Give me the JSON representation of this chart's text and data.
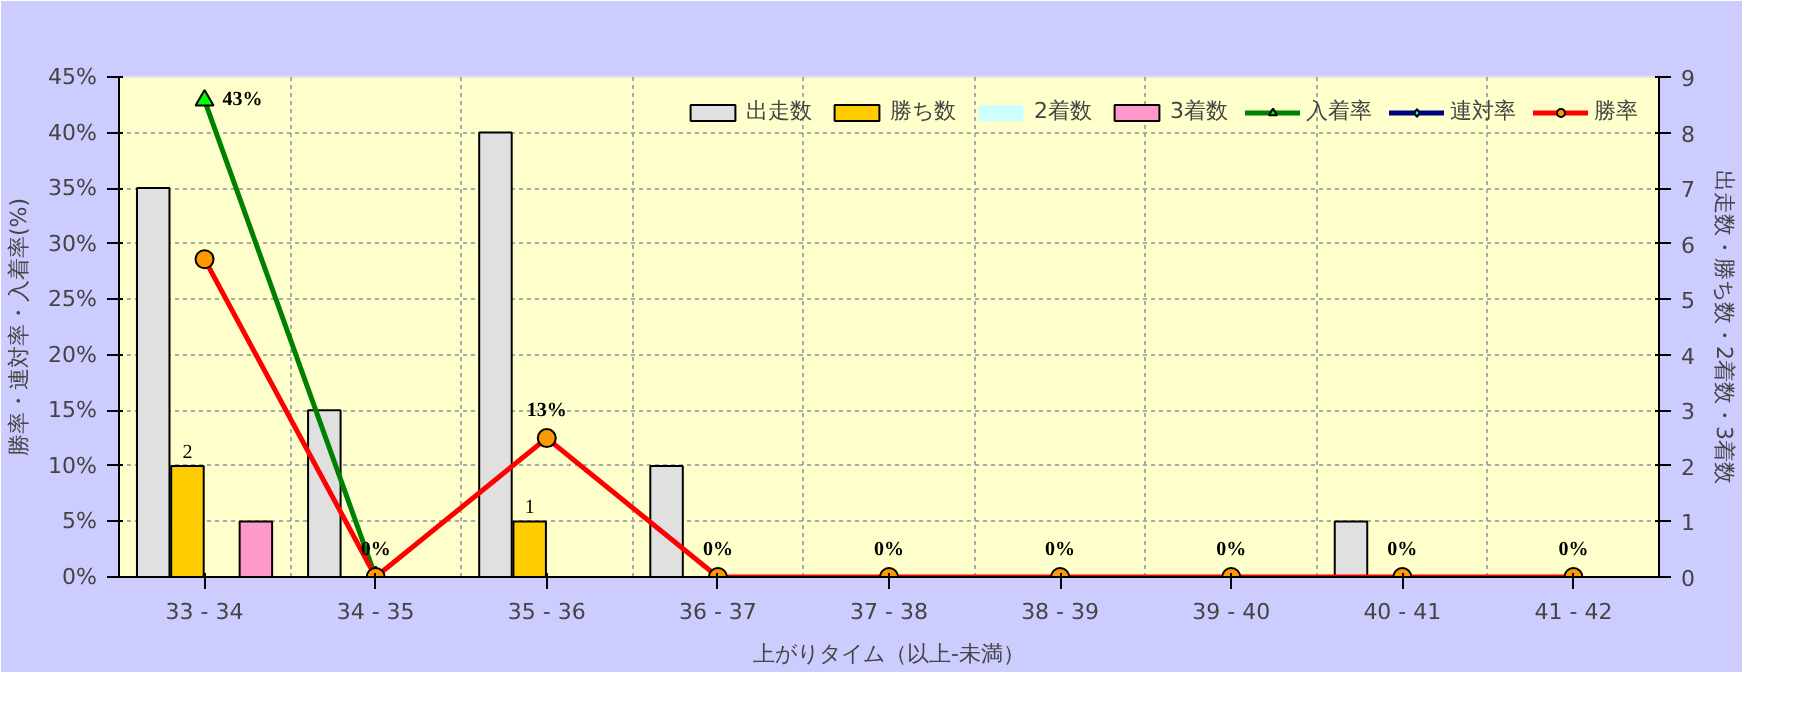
{
  "chart_data": {
    "type": "bar",
    "xlabel": "上がりタイム（以上-未満）",
    "ylabel": "勝率・連対率・入着率(%)",
    "y2label": "出走数・勝ち数・2着数・3着数",
    "categories": [
      "33 - 34",
      "34 - 35",
      "35 - 36",
      "36 - 37",
      "37 - 38",
      "38 - 39",
      "39 - 40",
      "40 - 41",
      "41 - 42"
    ],
    "series": [
      {
        "name": "出走数",
        "color": "#e0e0e0",
        "axis": "y2",
        "values": [
          7,
          3,
          8,
          2,
          0,
          0,
          0,
          1,
          0
        ]
      },
      {
        "name": "勝ち数",
        "color": "#ffcc00",
        "axis": "y2",
        "values": [
          2,
          0,
          1,
          0,
          0,
          0,
          0,
          0,
          0
        ],
        "value_labels": [
          "2",
          null,
          "1",
          null,
          null,
          null,
          null,
          null,
          null
        ]
      },
      {
        "name": "2着数",
        "color": "#ccffff",
        "axis": "y2",
        "values": [
          0,
          0,
          0,
          0,
          0,
          0,
          0,
          0,
          0
        ]
      },
      {
        "name": "3着数",
        "color": "#ff99cc",
        "axis": "y2",
        "values": [
          1,
          0,
          0,
          0,
          0,
          0,
          0,
          0,
          0
        ]
      },
      {
        "name": "入着率",
        "type": "line",
        "color": "#008000",
        "marker": "triangle",
        "values": [
          42.9,
          0,
          null,
          null,
          null,
          null,
          null,
          null,
          null
        ],
        "value_labels": [
          "43%",
          null,
          null,
          null,
          null,
          null,
          null,
          null,
          null
        ]
      },
      {
        "name": "連対率",
        "type": "line",
        "color": "#000080",
        "marker": "diamond",
        "values": [
          null,
          null,
          null,
          null,
          null,
          null,
          null,
          null,
          null
        ]
      },
      {
        "name": "勝率",
        "type": "line",
        "color": "#ff0000",
        "marker": "circle",
        "values": [
          28.6,
          0,
          12.5,
          0,
          0,
          0,
          0,
          0,
          0
        ],
        "value_labels": [
          null,
          "0%",
          "13%",
          "0%",
          "0%",
          "0%",
          "0%",
          "0%",
          "0%"
        ]
      }
    ],
    "ylim": [
      0,
      45
    ],
    "yticks": [
      {
        "value": 0,
        "label": "0%"
      },
      {
        "value": 5,
        "label": "5%"
      },
      {
        "value": 10,
        "label": "10%"
      },
      {
        "value": 15,
        "label": "15%"
      },
      {
        "value": 20,
        "label": "20%"
      },
      {
        "value": 25,
        "label": "25%"
      },
      {
        "value": 30,
        "label": "30%"
      },
      {
        "value": 35,
        "label": "35%"
      },
      {
        "value": 40,
        "label": "40%"
      },
      {
        "value": 45,
        "label": "45%"
      }
    ],
    "y2lim": [
      0,
      9
    ],
    "y2ticks": [
      0,
      1,
      2,
      3,
      4,
      5,
      6,
      7,
      8,
      9
    ],
    "grid": true,
    "legend": "top right"
  }
}
